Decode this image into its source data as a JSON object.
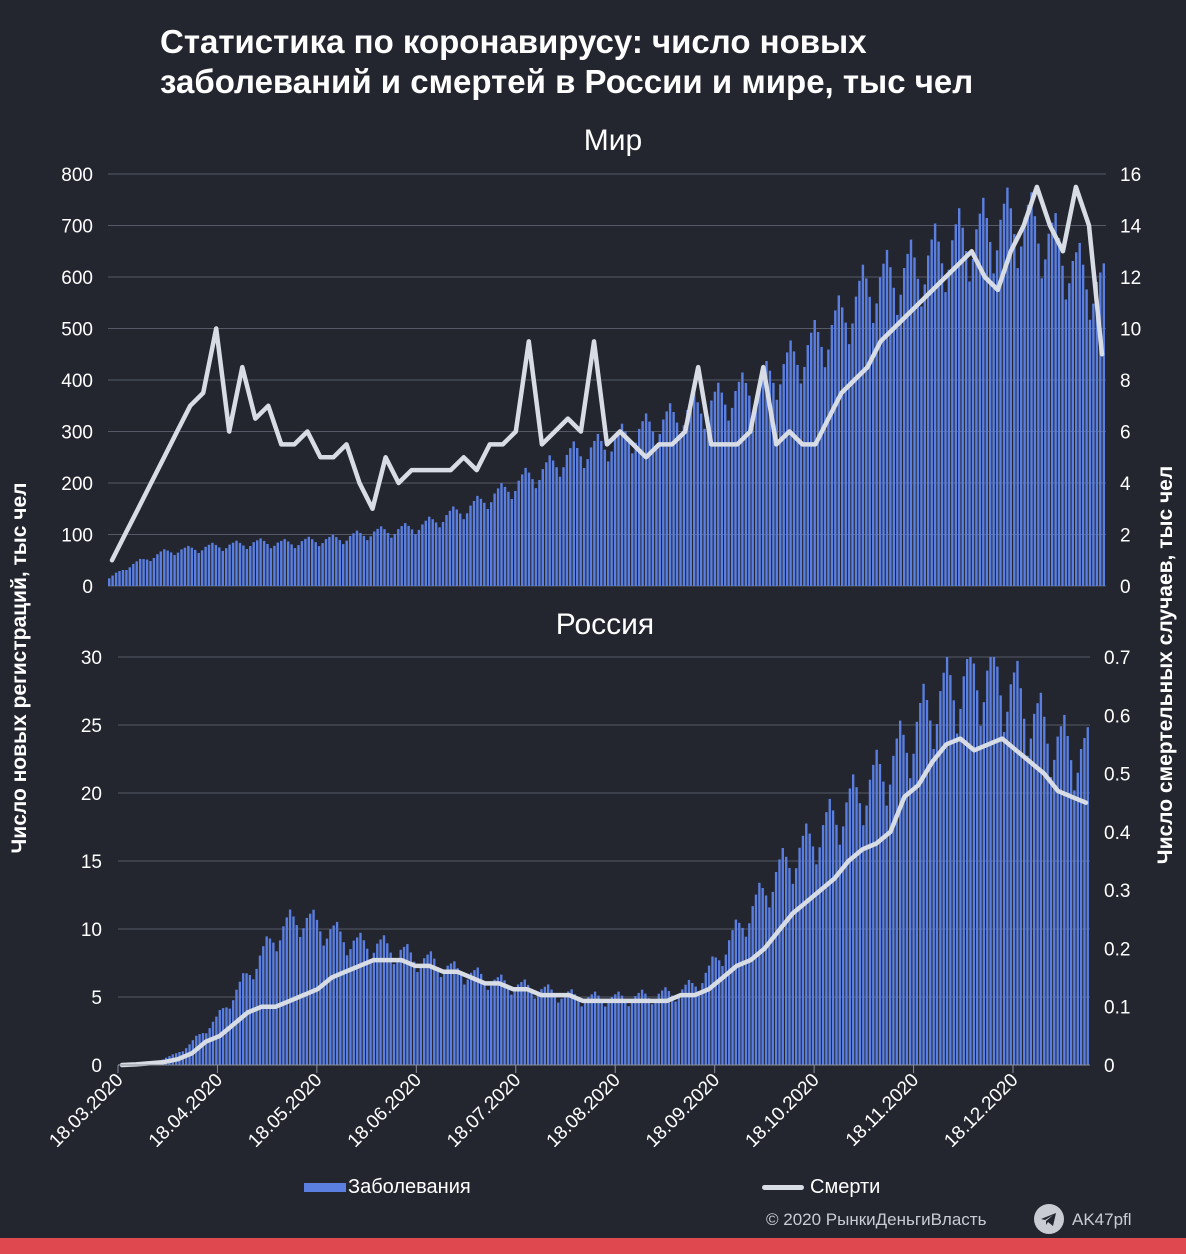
{
  "title": {
    "line1": "Статистика по коронавирусу: число новых",
    "line2": "заболеваний и смертей в России и мире, тыс чел"
  },
  "colors": {
    "bars": "#5b7fe0",
    "line": "#d8dce4",
    "background": "#23262f",
    "accent": "#e0484f"
  },
  "chart_data": [
    {
      "type": "bar+line",
      "title": "Мир",
      "ylabel": "Число новых регистраций, тыс чел",
      "y2label": "Число смертельных случаев, тыс чел",
      "ylim": [
        0,
        800
      ],
      "y2lim": [
        0,
        16
      ],
      "yticks": [
        "0",
        "100",
        "200",
        "300",
        "400",
        "500",
        "600",
        "700",
        "800"
      ],
      "y2ticks": [
        "0",
        "2",
        "4",
        "6",
        "8",
        "10",
        "12",
        "14",
        "16"
      ],
      "x_start": "18.03.2020",
      "x_end": "30.12.2020",
      "series": [
        {
          "name": "Заболевания",
          "axis": "left",
          "values": [
            15,
            32,
            45,
            55,
            65,
            70,
            72,
            75,
            78,
            80,
            82,
            85,
            86,
            84,
            85,
            88,
            90,
            92,
            95,
            100,
            105,
            108,
            110,
            115,
            120,
            130,
            140,
            150,
            160,
            175,
            185,
            200,
            215,
            225,
            240,
            255,
            265,
            270,
            280,
            290,
            300,
            310,
            320,
            330,
            340,
            350,
            360,
            370,
            380,
            390,
            400,
            420,
            440,
            460,
            480,
            500,
            530,
            560,
            590,
            600,
            610,
            620,
            630,
            650,
            665,
            680,
            690,
            700,
            710,
            720,
            715,
            700,
            680,
            650,
            620,
            600,
            580
          ]
        },
        {
          "name": "Смерти",
          "axis": "right",
          "values": [
            1,
            2,
            3,
            4,
            5,
            6,
            7,
            7.5,
            10,
            6,
            8.5,
            6.5,
            7,
            5.5,
            5.5,
            6,
            5,
            5,
            5.5,
            4,
            3,
            5,
            4,
            4.5,
            4.5,
            4.5,
            4.5,
            5,
            4.5,
            5.5,
            5.5,
            6,
            9.5,
            5.5,
            6,
            6.5,
            6,
            9.5,
            5.5,
            6,
            5.5,
            5,
            5.5,
            5.5,
            6,
            8.5,
            5.5,
            5.5,
            5.5,
            6,
            8.5,
            5.5,
            6,
            5.5,
            5.5,
            6.5,
            7.5,
            8,
            8.5,
            9.5,
            10,
            10.5,
            11,
            11.5,
            12,
            12.5,
            13,
            12,
            11.5,
            13,
            14,
            15.5,
            14,
            13,
            15.5,
            14,
            9
          ]
        }
      ]
    },
    {
      "type": "bar+line",
      "title": "Россия",
      "ylim": [
        0,
        30
      ],
      "y2lim": [
        0,
        0.7
      ],
      "yticks": [
        "0",
        "5",
        "10",
        "15",
        "20",
        "25",
        "30"
      ],
      "y2ticks": [
        "0",
        "0.1",
        "0.2",
        "0.3",
        "0.4",
        "0.5",
        "0.6",
        "0.7"
      ],
      "x_start": "18.03.2020",
      "x_end": "30.12.2020",
      "xticks": [
        "18.03.2020",
        "18.04.2020",
        "18.05.2020",
        "18.06.2020",
        "18.07.2020",
        "18.08.2020",
        "18.09.2020",
        "18.10.2020",
        "18.11.2020",
        "18.12.2020"
      ],
      "series": [
        {
          "name": "Заболевания",
          "axis": "left",
          "values": [
            0.05,
            0.1,
            0.2,
            0.4,
            0.8,
            1.5,
            2.5,
            3.5,
            5,
            6.5,
            8,
            9.5,
            10.5,
            11,
            10.5,
            10,
            9.5,
            9,
            9,
            8.8,
            8.5,
            8,
            7.8,
            7.5,
            7,
            6.8,
            6.5,
            6.2,
            6,
            5.8,
            5.6,
            5.4,
            5.2,
            5,
            5,
            5,
            5,
            5.1,
            5.2,
            5.3,
            5.5,
            6,
            7,
            8.5,
            10,
            11.5,
            13,
            14.5,
            15.5,
            16.5,
            17.5,
            18.5,
            19.5,
            20.5,
            21.5,
            22.5,
            24,
            25.5,
            27,
            28,
            28.5,
            29,
            29,
            28.5,
            27.5,
            26,
            25,
            24,
            23.5,
            23
          ]
        },
        {
          "name": "Смерти",
          "axis": "right",
          "values": [
            0,
            0.001,
            0.003,
            0.005,
            0.01,
            0.02,
            0.04,
            0.05,
            0.07,
            0.09,
            0.1,
            0.1,
            0.11,
            0.12,
            0.13,
            0.15,
            0.16,
            0.17,
            0.18,
            0.18,
            0.18,
            0.17,
            0.17,
            0.16,
            0.16,
            0.15,
            0.14,
            0.14,
            0.13,
            0.13,
            0.12,
            0.12,
            0.12,
            0.11,
            0.11,
            0.11,
            0.11,
            0.11,
            0.11,
            0.11,
            0.12,
            0.12,
            0.13,
            0.15,
            0.17,
            0.18,
            0.2,
            0.23,
            0.26,
            0.28,
            0.3,
            0.32,
            0.35,
            0.37,
            0.38,
            0.4,
            0.46,
            0.48,
            0.52,
            0.55,
            0.56,
            0.54,
            0.55,
            0.56,
            0.54,
            0.52,
            0.5,
            0.47,
            0.46,
            0.45
          ]
        }
      ]
    }
  ],
  "legend": {
    "cases": "Заболевания",
    "deaths": "Смерти"
  },
  "footer": {
    "copyright": "© 2020  РынкиДеньгиВласть",
    "channel": "AK47pfl"
  }
}
